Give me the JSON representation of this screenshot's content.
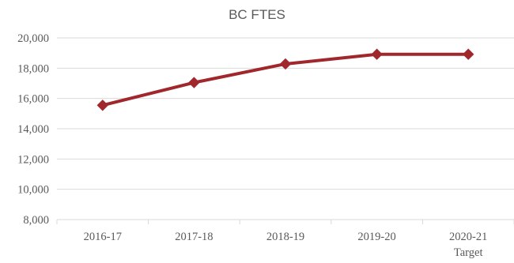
{
  "chart_data": {
    "type": "line",
    "title": "BC FTES",
    "xlabel": "",
    "ylabel": "",
    "categories": [
      "2016-17",
      "2017-18",
      "2018-19",
      "2019-20",
      "2020-21"
    ],
    "category_sublabels": [
      "",
      "",
      "",
      "",
      "Target"
    ],
    "series": [
      {
        "values": [
          15550,
          17050,
          18280,
          18920,
          18920
        ]
      }
    ],
    "ylim": [
      8000,
      20000
    ],
    "ytick_step": 2000,
    "ytick_labels": [
      "8,000",
      "10,000",
      "12,000",
      "14,000",
      "16,000",
      "18,000",
      "20,000"
    ],
    "grid": true,
    "legend": "none",
    "marker": "diamond",
    "colors": {
      "series": "#a0282d",
      "grid": "#d9d9d9",
      "text": "#595959"
    }
  }
}
